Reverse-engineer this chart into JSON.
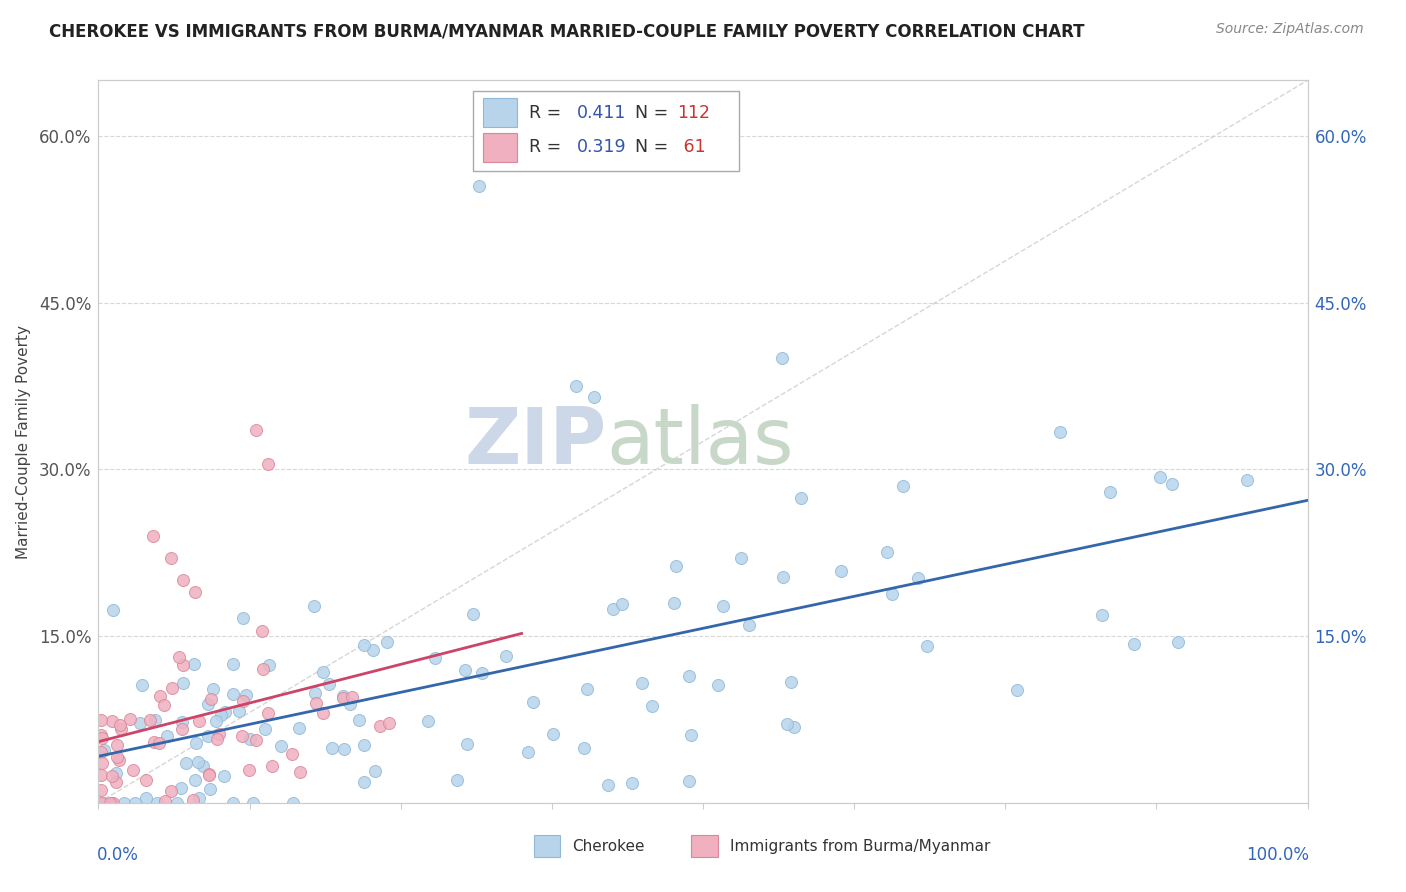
{
  "title": "CHEROKEE VS IMMIGRANTS FROM BURMA/MYANMAR MARRIED-COUPLE FAMILY POVERTY CORRELATION CHART",
  "source": "Source: ZipAtlas.com",
  "ylabel": "Married-Couple Family Poverty",
  "watermark_zip": "ZIP",
  "watermark_atlas": "atlas",
  "cherokee_color": "#b8d4ea",
  "cherokee_edge": "#90b8d8",
  "burma_color": "#f0b0c0",
  "burma_edge": "#d88898",
  "trend_cherokee_color": "#3366aa",
  "trend_burma_color": "#cc4466",
  "background_color": "#ffffff",
  "grid_color": "#d8d8d8",
  "axis_color": "#cccccc",
  "yticks": [
    0.0,
    0.15,
    0.3,
    0.45,
    0.6
  ],
  "ytick_labels_left": [
    "",
    "15.0%",
    "30.0%",
    "45.0%",
    "60.0%"
  ],
  "ytick_labels_right": [
    "",
    "15.0%",
    "30.0%",
    "45.0%",
    "60.0%"
  ],
  "title_fontsize": 12,
  "source_fontsize": 10,
  "tick_fontsize": 12,
  "ylabel_fontsize": 11,
  "watermark_fontsize_zip": 56,
  "watermark_fontsize_atlas": 56,
  "watermark_color": "#ccd8e8",
  "legend_R_color": "#3355aa",
  "legend_N_color": "#cc3333",
  "legend_text_color": "#333333"
}
